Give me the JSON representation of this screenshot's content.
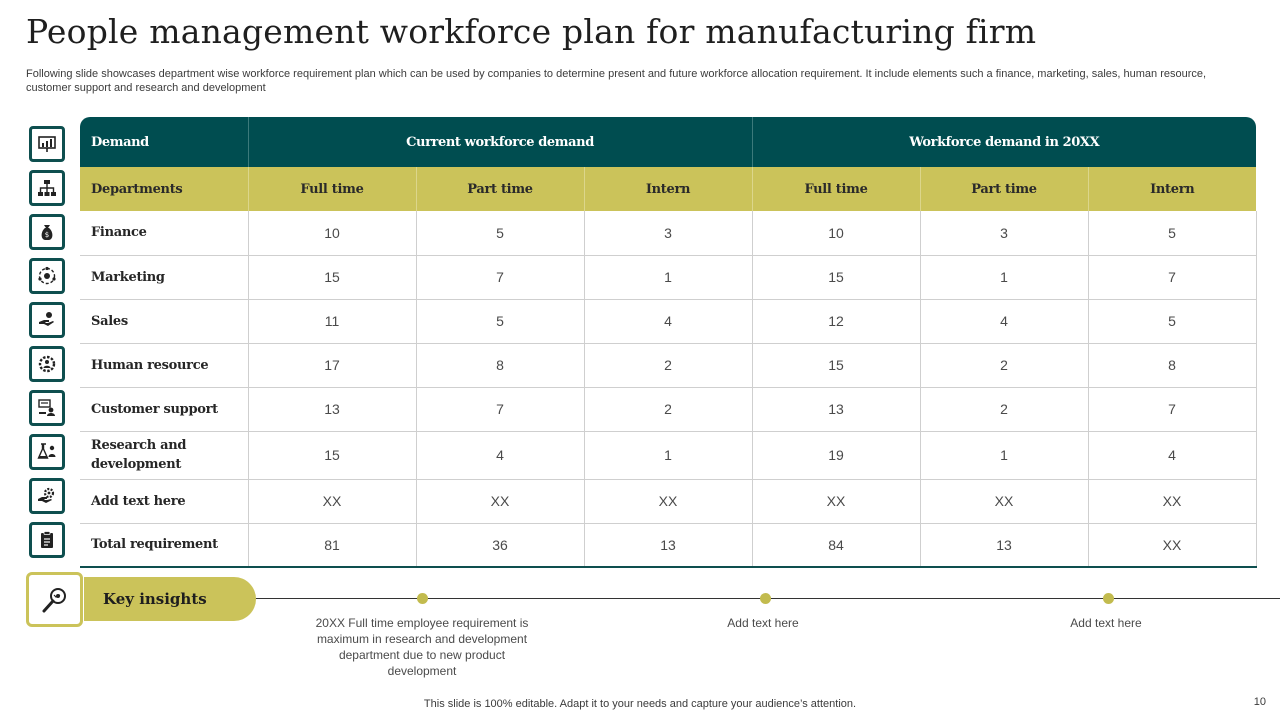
{
  "header": {
    "title": "People management workforce plan for manufacturing firm",
    "subtitle": "Following slide showcases department wise workforce requirement plan which can be used by companies to determine present and future workforce allocation requirement. It include elements such a finance, marketing, sales, human resource, customer support and research and development"
  },
  "table": {
    "group_headers": {
      "demand": "Demand",
      "current": "Current workforce demand",
      "future": "Workforce demand in 20XX"
    },
    "columns": [
      "Departments",
      "Full time",
      "Part time",
      "Intern",
      "Full time",
      "Part time",
      "Intern"
    ],
    "rows": [
      {
        "dept": "Finance",
        "icon": "money-bag-icon",
        "values": [
          "10",
          "5",
          "3",
          "10",
          "3",
          "5"
        ]
      },
      {
        "dept": "Marketing",
        "icon": "marketing-cycle-icon",
        "values": [
          "15",
          "7",
          "1",
          "15",
          "1",
          "7"
        ]
      },
      {
        "dept": "Sales",
        "icon": "sales-hand-icon",
        "values": [
          "11",
          "5",
          "4",
          "12",
          "4",
          "5"
        ]
      },
      {
        "dept": "Human resource",
        "icon": "team-gear-icon",
        "values": [
          "17",
          "8",
          "2",
          "15",
          "2",
          "8"
        ]
      },
      {
        "dept": "Customer support",
        "icon": "support-desk-icon",
        "values": [
          "13",
          "7",
          "2",
          "13",
          "2",
          "7"
        ]
      },
      {
        "dept": "Research and development",
        "icon": "research-flask-icon",
        "values": [
          "15",
          "4",
          "1",
          "19",
          "1",
          "4"
        ]
      },
      {
        "dept": "Add text here",
        "icon": "hand-gear-icon",
        "values": [
          "XX",
          "XX",
          "XX",
          "XX",
          "XX",
          "XX"
        ]
      },
      {
        "dept": "Total requirement",
        "icon": "clipboard-icon",
        "values": [
          "81",
          "36",
          "13",
          "84",
          "13",
          "XX"
        ]
      }
    ]
  },
  "header_icons": [
    "chart-presentation-icon",
    "org-chart-icon"
  ],
  "insights": {
    "label": "Key insights",
    "icon": "magnifier-icon",
    "items": [
      "20XX  Full time employee requirement  is maximum in research and development  department due to new product development",
      "Add text here",
      "Add text here"
    ]
  },
  "footer": {
    "note": "This slide is 100% editable. Adapt it to your needs and capture your audience’s attention.",
    "page": "10"
  },
  "colors": {
    "teal": "#004d50",
    "olive": "#cbc35a"
  }
}
